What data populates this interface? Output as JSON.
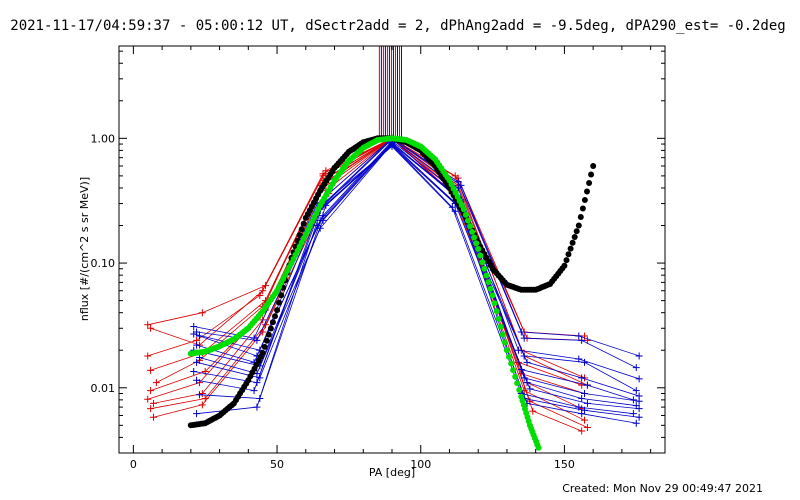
{
  "chart_data": {
    "type": "scatter",
    "title": "2021-11-17/04:59:37 - 05:00:12 UT, dSectr2add = 2, dPhAng2add = -9.5deg, dPA290_est= -0.2deg",
    "xlabel": "PA [deg]",
    "ylabel": "nflux [#/(cm^2 s sr MeV)]",
    "xlim": [
      -5,
      185
    ],
    "ylim": [
      0.003,
      5.5
    ],
    "yscale": "log",
    "x_ticks": [
      0,
      50,
      100,
      150
    ],
    "x_tick_labels": [
      "0",
      "50",
      "100",
      "150"
    ],
    "y_ticks": [
      0.01,
      0.1,
      1.0
    ],
    "y_tick_labels": [
      "0.01",
      "0.10",
      "1.00"
    ],
    "footer": "Created: Mon Nov 29 00:49:47 2021",
    "colors": {
      "red": "#dd0000",
      "blue": "#0000cc",
      "black": "#000000",
      "green": "#00dd00"
    },
    "vertical_markers": {
      "x": [
        85.6,
        86.3,
        87.0,
        87.7,
        88.4,
        89.1,
        89.8,
        90.5,
        91.2,
        91.9,
        92.6,
        93.3
      ],
      "colors": [
        "#dd0000",
        "#0000cc",
        "#dd0000",
        "#0000cc",
        "#dd0000",
        "#0000cc",
        "#dd0000",
        "#0000cc",
        "#dd0000",
        "#0000cc",
        "#dd0000",
        "#0000cc"
      ],
      "y_from": 1.0
    },
    "red_series": [
      {
        "x": [
          5,
          24,
          46,
          67,
          90,
          112,
          136,
          157
        ],
        "y": [
          0.032,
          0.04,
          0.066,
          0.55,
          1.0,
          0.5,
          0.028,
          0.026
        ]
      },
      {
        "x": [
          6,
          23,
          45,
          66,
          90,
          113,
          137,
          158
        ],
        "y": [
          0.03,
          0.022,
          0.06,
          0.52,
          1.0,
          0.48,
          0.025,
          0.024
        ]
      },
      {
        "x": [
          5,
          22,
          44,
          66,
          90,
          113,
          135,
          157
        ],
        "y": [
          0.018,
          0.024,
          0.055,
          0.5,
          1.0,
          0.45,
          0.02,
          0.012
        ]
      },
      {
        "x": [
          6,
          24,
          46,
          67,
          90,
          113,
          136,
          158
        ],
        "y": [
          0.0138,
          0.019,
          0.05,
          0.48,
          1.0,
          0.42,
          0.018,
          0.0105
        ]
      },
      {
        "x": [
          8,
          23,
          45,
          66,
          90,
          112,
          134,
          156
        ],
        "y": [
          0.011,
          0.0166,
          0.045,
          0.46,
          1.0,
          0.4,
          0.016,
          0.0105
        ]
      },
      {
        "x": [
          6,
          25,
          46,
          67,
          90,
          112,
          135,
          157
        ],
        "y": [
          0.0095,
          0.0135,
          0.042,
          0.44,
          1.0,
          0.38,
          0.013,
          0.009
        ]
      },
      {
        "x": [
          5,
          23,
          44,
          65,
          90,
          111,
          137,
          156
        ],
        "y": [
          0.0081,
          0.011,
          0.038,
          0.42,
          1.0,
          0.36,
          0.011,
          0.0068
        ]
      },
      {
        "x": [
          7,
          24,
          45,
          66,
          90,
          112,
          136,
          157
        ],
        "y": [
          0.0075,
          0.009,
          0.035,
          0.4,
          1.0,
          0.35,
          0.0095,
          0.0055
        ]
      },
      {
        "x": [
          6,
          25,
          46,
          67,
          90,
          113,
          138,
          158
        ],
        "y": [
          0.0068,
          0.0082,
          0.032,
          0.38,
          1.0,
          0.33,
          0.0078,
          0.0048
        ]
      },
      {
        "x": [
          7,
          24,
          45,
          68,
          90,
          114,
          139,
          156
        ],
        "y": [
          0.0058,
          0.0073,
          0.028,
          0.36,
          1.0,
          0.31,
          0.0065,
          0.0045
        ]
      }
    ],
    "blue_series": [
      {
        "x": [
          21,
          42,
          64,
          90,
          113,
          135,
          155,
          176
        ],
        "y": [
          0.031,
          0.025,
          0.3,
          1.0,
          0.45,
          0.028,
          0.026,
          0.018
        ]
      },
      {
        "x": [
          22,
          43,
          65,
          90,
          114,
          136,
          156,
          175
        ],
        "y": [
          0.028,
          0.024,
          0.28,
          1.0,
          0.42,
          0.025,
          0.024,
          0.0145
        ]
      },
      {
        "x": [
          21,
          44,
          64,
          90,
          113,
          134,
          155,
          176
        ],
        "y": [
          0.027,
          0.02,
          0.26,
          0.98,
          0.4,
          0.02,
          0.017,
          0.0118
        ]
      },
      {
        "x": [
          23,
          43,
          66,
          90,
          112,
          136,
          157,
          175
        ],
        "y": [
          0.026,
          0.018,
          0.24,
          0.95,
          0.38,
          0.018,
          0.016,
          0.0095
        ]
      },
      {
        "x": [
          22,
          42,
          65,
          90,
          111,
          137,
          156,
          176
        ],
        "y": [
          0.022,
          0.016,
          0.22,
          0.93,
          0.36,
          0.016,
          0.012,
          0.0086
        ]
      },
      {
        "x": [
          21,
          44,
          64,
          90,
          113,
          135,
          158,
          174
        ],
        "y": [
          0.02,
          0.015,
          0.2,
          0.92,
          0.34,
          0.014,
          0.0105,
          0.008
        ]
      },
      {
        "x": [
          23,
          43,
          65,
          90,
          114,
          136,
          157,
          176
        ],
        "y": [
          0.0175,
          0.013,
          0.19,
          0.9,
          0.32,
          0.012,
          0.009,
          0.0078
        ]
      },
      {
        "x": [
          22,
          44,
          66,
          90,
          112,
          137,
          156,
          175
        ],
        "y": [
          0.016,
          0.012,
          0.22,
          0.9,
          0.3,
          0.011,
          0.0082,
          0.0072
        ]
      },
      {
        "x": [
          21,
          43,
          64,
          90,
          113,
          138,
          158,
          176
        ],
        "y": [
          0.0135,
          0.011,
          0.25,
          0.89,
          0.29,
          0.0098,
          0.0075,
          0.0068
        ]
      },
      {
        "x": [
          22,
          42,
          65,
          90,
          111,
          135,
          155,
          174
        ],
        "y": [
          0.0115,
          0.0095,
          0.27,
          0.88,
          0.28,
          0.009,
          0.007,
          0.0062
        ]
      },
      {
        "x": [
          23,
          44,
          67,
          90,
          114,
          136,
          157,
          176
        ],
        "y": [
          0.0088,
          0.0082,
          0.29,
          0.87,
          0.27,
          0.0082,
          0.0066,
          0.0058
        ]
      },
      {
        "x": [
          22,
          43,
          66,
          90,
          112,
          137,
          156,
          175
        ],
        "y": [
          0.0062,
          0.007,
          0.3,
          0.86,
          0.26,
          0.0075,
          0.0062,
          0.0052
        ]
      }
    ],
    "black_fit": {
      "x": [
        20,
        25,
        30,
        35,
        40,
        45,
        50,
        55,
        60,
        65,
        70,
        75,
        80,
        85,
        90,
        95,
        100,
        105,
        110,
        115,
        120,
        125,
        130,
        135,
        140,
        145,
        150,
        155,
        160
      ],
      "y": [
        0.005,
        0.0052,
        0.006,
        0.0075,
        0.0115,
        0.019,
        0.042,
        0.11,
        0.23,
        0.38,
        0.58,
        0.78,
        0.93,
        1.0,
        1.0,
        0.93,
        0.8,
        0.6,
        0.4,
        0.25,
        0.145,
        0.09,
        0.067,
        0.061,
        0.061,
        0.068,
        0.095,
        0.2,
        0.6
      ]
    },
    "green_fit": {
      "x": [
        20,
        25,
        30,
        35,
        40,
        45,
        50,
        55,
        60,
        65,
        70,
        75,
        80,
        85,
        90,
        95,
        100,
        105,
        110,
        115,
        120,
        125,
        130,
        135,
        138,
        141
      ],
      "y": [
        0.0188,
        0.0195,
        0.0215,
        0.0245,
        0.03,
        0.041,
        0.06,
        0.1,
        0.17,
        0.29,
        0.46,
        0.66,
        0.84,
        0.97,
        1.0,
        0.97,
        0.86,
        0.68,
        0.46,
        0.27,
        0.13,
        0.055,
        0.02,
        0.0085,
        0.005,
        0.0033
      ]
    }
  }
}
